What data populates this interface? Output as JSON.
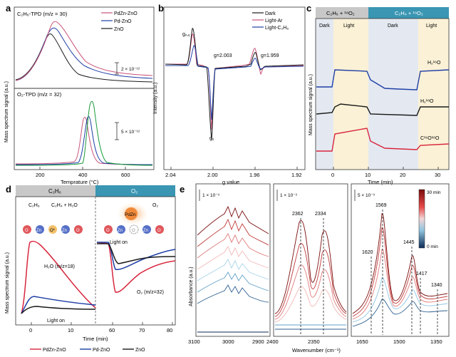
{
  "panels": {
    "a": {
      "letter": "a",
      "top_label": "C₂H₆-TPD (m/z = 30)",
      "bottom_label": "O₂-TPD (m/z = 32)",
      "scale_top": "2 × 10⁻¹²",
      "scale_bottom": "5 × 10⁻¹²",
      "ylabel": "Mass spectrum signal (a.u.)",
      "xlabel": "Temprature (°C)",
      "xticks": [
        "200",
        "400",
        "600"
      ],
      "legend": [
        "PdZn-ZnO",
        "Pd-ZnO",
        "ZnO"
      ]
    },
    "b": {
      "letter": "b",
      "legend": [
        "Dark",
        "Light-Ar",
        "Light-C₂H₆"
      ],
      "ylabel": "Intensity (a.u.)",
      "xlabel": "g value",
      "xticks": [
        "2.04",
        "2.00",
        "1.96",
        "1.92"
      ],
      "annotations": [
        "gₓ,ᵧ",
        "g=2.003",
        "g=1.959",
        "gᵧ"
      ]
    },
    "c": {
      "letter": "c",
      "header_left": "C₂H₆ + ¹⁸O₂",
      "header_right": "C₂H₄ + ¹⁸O₂",
      "regions": [
        "Dark",
        "Light",
        "Dark",
        "Light"
      ],
      "ylabel": "Mass spectrum signal (a.u.)",
      "xlabel": "Time (min)",
      "xticks": [
        "0",
        "10",
        "20",
        "30"
      ],
      "traces": [
        "H₂¹⁶O",
        "H₂¹⁸O",
        "C¹⁶O¹⁸O"
      ]
    },
    "d": {
      "letter": "d",
      "header_left": "C₂H₆",
      "header_right": "O₂",
      "scheme": {
        "reactant": "C₂H₆",
        "product": "C₂H₄ + H₂O",
        "pdzn": "PdZn",
        "o2": "O₂",
        "atoms_left": [
          "O",
          "Zn",
          "O*",
          "Zn",
          "O"
        ],
        "atoms_right": [
          "O",
          "Zn",
          "O",
          "Zn",
          "O"
        ]
      },
      "h2o_label": "H₂O (m/z=18)",
      "o2_label": "O₂ (m/z=32)",
      "light_on": "Light on",
      "ylabel": "Mass spectrum signal (a.u.)",
      "xlabel": "Time (min)",
      "xticks": [
        "0",
        "10",
        "60",
        "70",
        "80"
      ],
      "legend": [
        "PdZn-ZnO",
        "Pd-ZnO",
        "ZnO"
      ]
    },
    "e": {
      "letter": "e",
      "ylabel": "Absorbance (a.u.)",
      "xlabel": "Wavenumber (cm⁻¹)",
      "scale1": "1 × 10⁻³",
      "scale2": "1 × 10⁻³",
      "scale3": "5 × 10⁻³",
      "xticks1": [
        "3100",
        "3000",
        "2900"
      ],
      "xticks2": [
        "2400",
        "2350"
      ],
      "xticks3": [
        "1650",
        "1500",
        "1350"
      ],
      "peaks": [
        "2362",
        "2334",
        "1569",
        "1445",
        "1620",
        "1417",
        "1340"
      ],
      "colorbar": [
        "30 min",
        "0 min"
      ]
    }
  },
  "colors": {
    "red": "#d7263d",
    "pink": "#c8557a",
    "black": "#1a1a1a",
    "blue": "#1f3fa6",
    "teal": "#3a96b3",
    "grey": "#c8c8c8"
  },
  "chart_data": [
    {
      "type": "line",
      "panel": "a-top",
      "xlabel": "Temprature (°C)",
      "xlim": [
        100,
        700
      ],
      "series": [
        {
          "name": "PdZn-ZnO",
          "peak_x": 250
        },
        {
          "name": "Pd-ZnO",
          "peak_x": 245
        },
        {
          "name": "ZnO",
          "peak_x": 200
        }
      ]
    },
    {
      "type": "line",
      "panel": "a-bottom",
      "xlabel": "Temprature (°C)",
      "xlim": [
        100,
        700
      ],
      "series": [
        {
          "name": "PdZn-ZnO",
          "peak_x": 400
        },
        {
          "name": "Pd-ZnO",
          "peak_x": 410
        },
        {
          "name": "ZnO",
          "peak_x": 430
        }
      ]
    },
    {
      "type": "line",
      "panel": "b",
      "xlabel": "g value",
      "xlim": [
        2.05,
        1.92
      ],
      "series": [
        {
          "name": "Dark"
        },
        {
          "name": "Light-Ar"
        },
        {
          "name": "Light-C₂H₆"
        }
      ]
    },
    {
      "type": "line",
      "panel": "c",
      "xlabel": "Time (min)",
      "xlim": [
        -5,
        35
      ],
      "series": [
        {
          "name": "H₂¹⁶O"
        },
        {
          "name": "H₂¹⁸O"
        },
        {
          "name": "C¹⁶O¹⁸O"
        }
      ]
    },
    {
      "type": "line",
      "panel": "d",
      "xlabel": "Time (min)",
      "series": [
        {
          "name": "PdZn-ZnO"
        },
        {
          "name": "Pd-ZnO"
        },
        {
          "name": "ZnO"
        }
      ]
    },
    {
      "type": "line",
      "panel": "e",
      "xlabel": "Wavenumber (cm⁻¹)",
      "ylabel": "Absorbance (a.u.)",
      "peaks": [
        2362,
        2334,
        1569,
        1445,
        1620,
        1417,
        1340
      ]
    }
  ]
}
